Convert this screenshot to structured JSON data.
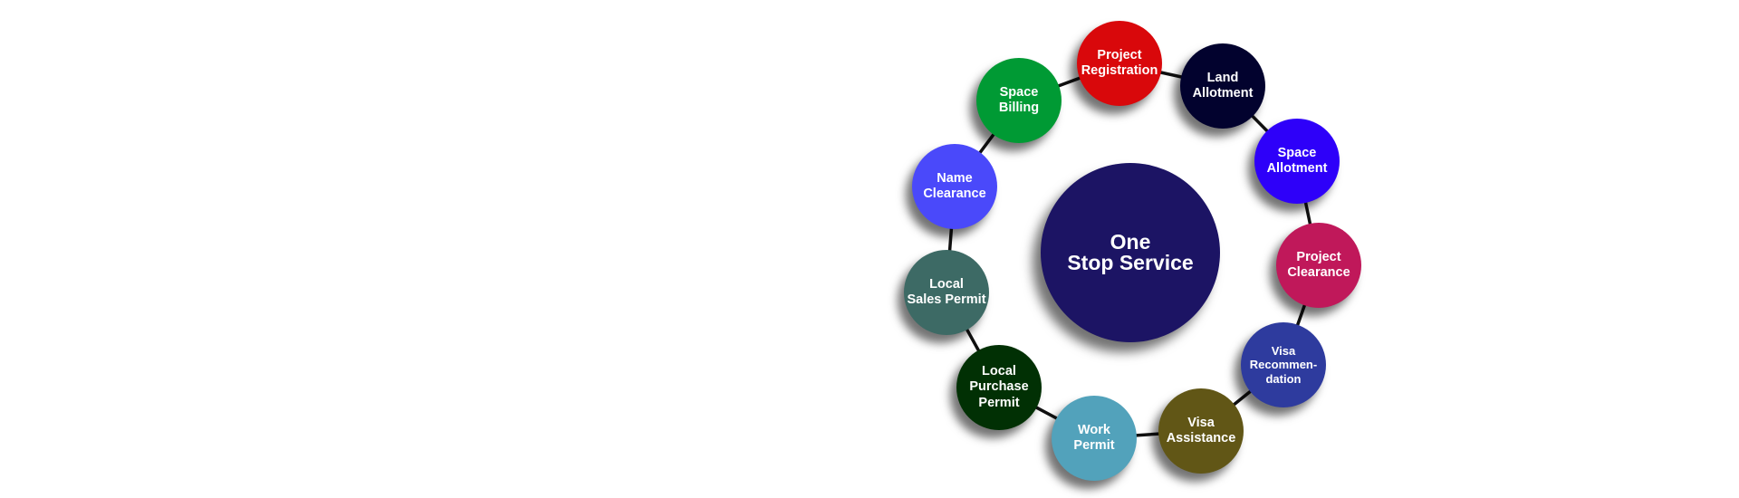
{
  "center": {
    "label": "One\nStop Service",
    "color": "#1c1464"
  },
  "services": [
    {
      "id": "project-registration",
      "label": "Project\nRegistration",
      "color": "#d9080b"
    },
    {
      "id": "land-allotment",
      "label": "Land\nAllotment",
      "color": "#02022e"
    },
    {
      "id": "space-allotment",
      "label": "Space\nAllotment",
      "color": "#2e00f9"
    },
    {
      "id": "project-clearance",
      "label": "Project\nClearance",
      "color": "#c0185a"
    },
    {
      "id": "visa-recommendation",
      "label": "Visa\nRecommen-\ndation",
      "color": "#2e3b9e"
    },
    {
      "id": "visa-assistance",
      "label": "Visa\nAssistance",
      "color": "#615616"
    },
    {
      "id": "work-permit",
      "label": "Work\nPermit",
      "color": "#52a2bb"
    },
    {
      "id": "local-purchase-permit",
      "label": "Local\nPurchase\nPermit",
      "color": "#013004"
    },
    {
      "id": "local-sales-permit",
      "label": "Local\nSales Permit",
      "color": "#3d6a65"
    },
    {
      "id": "name-clearance",
      "label": "Name\nClearance",
      "color": "#4a49fa"
    },
    {
      "id": "space-billing",
      "label": "Space\nBilling",
      "color": "#009a34"
    }
  ]
}
